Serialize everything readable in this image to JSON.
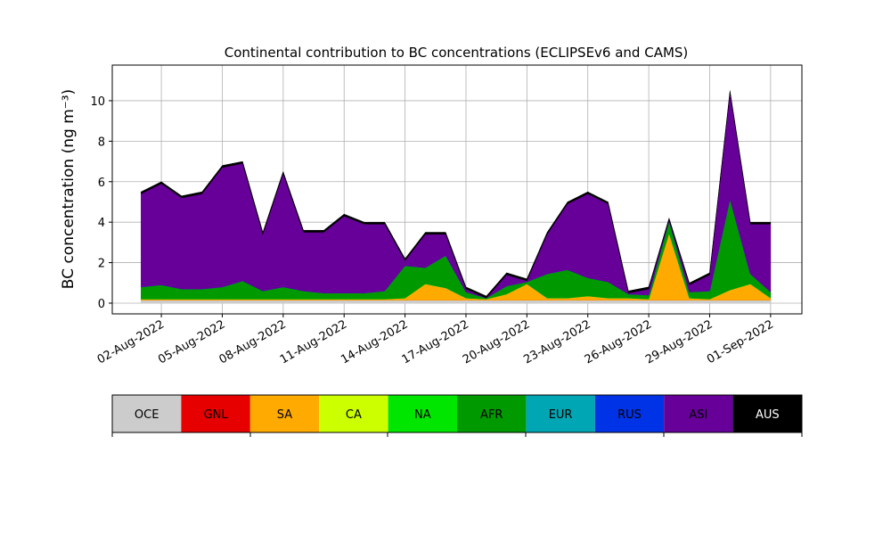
{
  "chart_data": {
    "type": "stacked_area",
    "title": "Continental contribution to BC concentrations (ECLIPSEv6 and CAMS)",
    "y_label": "BC concentration (ng m⁻³)",
    "x": [
      "2022-08-01",
      "2022-08-02",
      "2022-08-03",
      "2022-08-04",
      "2022-08-05",
      "2022-08-06",
      "2022-08-07",
      "2022-08-08",
      "2022-08-09",
      "2022-08-10",
      "2022-08-11",
      "2022-08-12",
      "2022-08-13",
      "2022-08-14",
      "2022-08-15",
      "2022-08-16",
      "2022-08-17",
      "2022-08-18",
      "2022-08-19",
      "2022-08-20",
      "2022-08-21",
      "2022-08-22",
      "2022-08-23",
      "2022-08-24",
      "2022-08-25",
      "2022-08-26",
      "2022-08-27",
      "2022-08-28",
      "2022-08-29",
      "2022-08-30",
      "2022-08-31",
      "2022-09-01"
    ],
    "series": [
      {
        "name": "OCE",
        "color": "#cccccc",
        "values": [
          0.15,
          0.15,
          0.15,
          0.15,
          0.15,
          0.15,
          0.15,
          0.15,
          0.15,
          0.15,
          0.15,
          0.15,
          0.15,
          0.15,
          0.15,
          0.15,
          0.15,
          0.15,
          0.15,
          0.15,
          0.15,
          0.15,
          0.15,
          0.15,
          0.15,
          0.15,
          0.15,
          0.15,
          0.15,
          0.15,
          0.15,
          0.15
        ]
      },
      {
        "name": "GNL",
        "color": "#e60000",
        "values": [
          0,
          0,
          0,
          0,
          0,
          0,
          0,
          0,
          0,
          0,
          0,
          0,
          0,
          0,
          0,
          0,
          0,
          0,
          0,
          0,
          0,
          0,
          0,
          0,
          0,
          0,
          0,
          0,
          0,
          0,
          0,
          0
        ]
      },
      {
        "name": "SA",
        "color": "#ffaa00",
        "values": [
          0.05,
          0.05,
          0.05,
          0.05,
          0.05,
          0.05,
          0.05,
          0.05,
          0.05,
          0.05,
          0.05,
          0.05,
          0.05,
          0.1,
          0.8,
          0.6,
          0.1,
          0.05,
          0.3,
          0.8,
          0.1,
          0.1,
          0.2,
          0.1,
          0.1,
          0.05,
          3.3,
          0.1,
          0.05,
          0.5,
          0.8,
          0.1
        ]
      },
      {
        "name": "CA",
        "color": "#ccff00",
        "values": [
          0,
          0,
          0,
          0,
          0,
          0,
          0,
          0,
          0,
          0,
          0,
          0,
          0,
          0,
          0,
          0,
          0,
          0,
          0,
          0,
          0,
          0,
          0,
          0,
          0,
          0,
          0,
          0,
          0,
          0,
          0,
          0
        ]
      },
      {
        "name": "NA",
        "color": "#00e600",
        "values": [
          0,
          0,
          0,
          0,
          0,
          0,
          0,
          0,
          0,
          0,
          0,
          0,
          0,
          0,
          0,
          0,
          0,
          0,
          0,
          0,
          0,
          0,
          0,
          0,
          0,
          0,
          0,
          0,
          0,
          0,
          0,
          0
        ]
      },
      {
        "name": "AFR",
        "color": "#009900",
        "values": [
          0.6,
          0.7,
          0.5,
          0.5,
          0.6,
          0.9,
          0.4,
          0.6,
          0.4,
          0.3,
          0.3,
          0.3,
          0.4,
          1.6,
          0.8,
          1.6,
          0.3,
          0.05,
          0.4,
          0.1,
          1.2,
          1.4,
          0.9,
          0.8,
          0.2,
          0.2,
          0.6,
          0.3,
          0.4,
          4.5,
          0.5,
          0.3
        ]
      },
      {
        "name": "EUR",
        "color": "#00a6b4",
        "values": [
          0,
          0,
          0,
          0,
          0,
          0,
          0,
          0,
          0,
          0,
          0,
          0,
          0,
          0,
          0,
          0,
          0,
          0,
          0,
          0,
          0,
          0,
          0,
          0,
          0,
          0,
          0,
          0,
          0,
          0,
          0,
          0
        ]
      },
      {
        "name": "RUS",
        "color": "#0033e6",
        "values": [
          0,
          0,
          0,
          0,
          0,
          0,
          0,
          0,
          0,
          0,
          0,
          0,
          0,
          0,
          0,
          0,
          0,
          0,
          0,
          0,
          0,
          0,
          0,
          0,
          0,
          0,
          0,
          0,
          0,
          0,
          0,
          0
        ]
      },
      {
        "name": "ASI",
        "color": "#660099",
        "values": [
          4.6,
          5.0,
          4.5,
          4.7,
          5.9,
          5.8,
          2.8,
          5.6,
          2.9,
          3.0,
          3.8,
          3.4,
          3.3,
          0.25,
          1.65,
          1.05,
          0.15,
          0,
          0.55,
          0.05,
          1.95,
          3.25,
          4.15,
          3.85,
          0.05,
          0.3,
          0.05,
          0.35,
          0.8,
          5.25,
          2.45,
          3.35
        ]
      },
      {
        "name": "AUS",
        "color": "#000000",
        "values": [
          0.1,
          0.1,
          0.1,
          0.1,
          0.1,
          0.1,
          0.1,
          0.1,
          0.1,
          0.1,
          0.1,
          0.1,
          0.1,
          0.1,
          0.1,
          0.1,
          0.1,
          0.1,
          0.1,
          0.1,
          0.1,
          0.1,
          0.1,
          0.1,
          0.1,
          0.1,
          0.1,
          0.1,
          0.1,
          0.1,
          0.1,
          0.1
        ]
      }
    ],
    "xlim": [
      "2022-07-30T14:00",
      "2022-09-02T13:00"
    ],
    "xticks": [
      {
        "value": "2022-08-02",
        "label": "02-Aug-2022"
      },
      {
        "value": "2022-08-05",
        "label": "05-Aug-2022"
      },
      {
        "value": "2022-08-08",
        "label": "08-Aug-2022"
      },
      {
        "value": "2022-08-11",
        "label": "11-Aug-2022"
      },
      {
        "value": "2022-08-14",
        "label": "14-Aug-2022"
      },
      {
        "value": "2022-08-17",
        "label": "17-Aug-2022"
      },
      {
        "value": "2022-08-20",
        "label": "20-Aug-2022"
      },
      {
        "value": "2022-08-23",
        "label": "23-Aug-2022"
      },
      {
        "value": "2022-08-26",
        "label": "26-Aug-2022"
      },
      {
        "value": "2022-08-29",
        "label": "29-Aug-2022"
      },
      {
        "value": "2022-09-01",
        "label": "01-Sep-2022"
      }
    ],
    "ylim": [
      -0.53,
      11.76
    ],
    "yticks": [
      0,
      2,
      4,
      6,
      8,
      10
    ],
    "grid": true
  }
}
